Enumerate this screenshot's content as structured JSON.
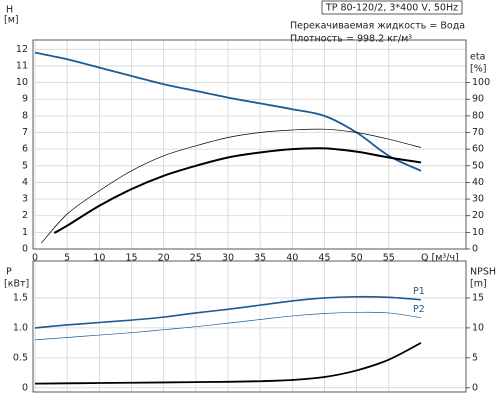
{
  "chart_data": [
    {
      "type": "line",
      "title": "TP 80-120/2, 3*400 V, 50Hz",
      "info": [
        "Перекачиваемая жидкость = Вода",
        "Плотность = 998.2 кг/м³"
      ],
      "ylabel": "H",
      "yunit": "[м]",
      "y2label": "eta",
      "y2unit": "[%]",
      "xlabel": "Q [м³/ч]",
      "xlim": [
        0,
        67
      ],
      "xticks": [
        0,
        5,
        10,
        15,
        20,
        25,
        30,
        35,
        40,
        45,
        50,
        55
      ],
      "ylim": [
        0,
        12.5
      ],
      "yticks": [
        0,
        1,
        2,
        3,
        4,
        5,
        6,
        7,
        8,
        9,
        10,
        11,
        12
      ],
      "y2lim": [
        0,
        125
      ],
      "y2ticks": [
        0,
        10,
        20,
        30,
        40,
        50,
        60,
        70,
        80,
        90,
        100
      ],
      "grid": true,
      "x_tick_labels": true,
      "series": [
        {
          "color": "#1c5a94",
          "line_width": 1.8,
          "x": [
            0,
            5,
            10,
            15,
            20,
            25,
            30,
            35,
            40,
            45,
            50,
            55,
            60
          ],
          "values": [
            11.8,
            11.4,
            10.9,
            10.4,
            9.9,
            9.5,
            9.1,
            8.75,
            8.4,
            8.0,
            7.0,
            5.6,
            4.7
          ]
        },
        {
          "color": "#000000",
          "line_width": 0.7,
          "axis": "y2",
          "x": [
            1,
            5,
            10,
            15,
            20,
            25,
            30,
            35,
            40,
            45,
            50,
            55,
            60
          ],
          "values": [
            3.6,
            21,
            35,
            47,
            56,
            62,
            67,
            70,
            71.5,
            72,
            70,
            66,
            61
          ]
        },
        {
          "color": "#000000",
          "line_width": 2,
          "axis": "y2",
          "x": [
            3,
            5,
            10,
            15,
            20,
            25,
            30,
            35,
            40,
            45,
            50,
            55,
            60
          ],
          "values": [
            9.6,
            14,
            26,
            36,
            44,
            50,
            55,
            58,
            60,
            60.5,
            58.5,
            55,
            52
          ]
        }
      ]
    },
    {
      "type": "line",
      "ylabel": "P",
      "yunit": "[кВт]",
      "y2label": "NPSH",
      "y2unit": "[m]",
      "xlim": [
        0,
        67
      ],
      "xticks": [
        0,
        5,
        10,
        15,
        20,
        25,
        30,
        35,
        40,
        45,
        50,
        55
      ],
      "ylim": [
        -0.07,
        2.1
      ],
      "yticks": [
        0,
        0.5,
        {
          "value": 1,
          "label": "1.0"
        },
        1.5
      ],
      "y2lim": [
        -0.7,
        21
      ],
      "y2ticks": [
        0,
        5,
        10,
        15
      ],
      "grid": true,
      "x_tick_labels": false,
      "series": [
        {
          "name": "P1",
          "color": "#1c5a94",
          "line_width": 1.6,
          "x": [
            0,
            5,
            10,
            15,
            20,
            25,
            30,
            35,
            40,
            45,
            50,
            55,
            60
          ],
          "values": [
            1.0,
            1.05,
            1.09,
            1.13,
            1.18,
            1.25,
            1.31,
            1.38,
            1.45,
            1.5,
            1.52,
            1.51,
            1.47
          ]
        },
        {
          "name": "P2",
          "color": "#1c5a94",
          "line_width": 0.7,
          "x": [
            0,
            5,
            10,
            15,
            20,
            25,
            30,
            35,
            40,
            45,
            50,
            55,
            60
          ],
          "values": [
            0.8,
            0.84,
            0.88,
            0.92,
            0.97,
            1.02,
            1.08,
            1.14,
            1.2,
            1.24,
            1.26,
            1.25,
            1.17
          ]
        },
        {
          "color": "#000000",
          "line_width": 1.8,
          "axis": "y2",
          "x": [
            0,
            5,
            10,
            15,
            20,
            25,
            30,
            35,
            40,
            45,
            50,
            55,
            60
          ],
          "values": [
            0.7,
            0.75,
            0.8,
            0.85,
            0.9,
            0.95,
            1.0,
            1.1,
            1.3,
            1.8,
            2.9,
            4.7,
            7.5
          ]
        }
      ]
    }
  ]
}
